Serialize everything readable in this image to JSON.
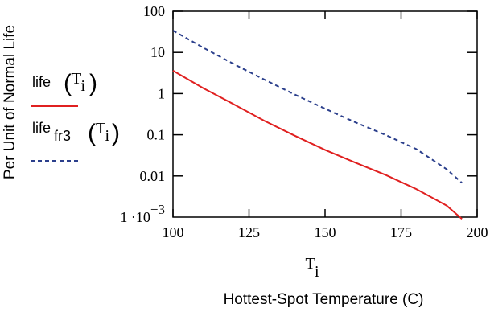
{
  "chart_data": {
    "type": "line",
    "ylabel": "Per Unit of Normal Life",
    "xlabel": "Hottest-Spot Temperature (C)",
    "x_var": {
      "base": "T",
      "sub": "i"
    },
    "x_ticks": [
      "100",
      "125",
      "150",
      "175",
      "200"
    ],
    "y_ticks": [
      "100",
      "10",
      "1",
      "0.1",
      "0.01"
    ],
    "y_tick_min": {
      "mantissa": "1 ·10",
      "exponent": "−3"
    },
    "xlim": [
      100,
      200
    ],
    "ylim": [
      0.001,
      100
    ],
    "y_scale": "log",
    "x": [
      100,
      110,
      120,
      130,
      140,
      150,
      160,
      170,
      180,
      190,
      195
    ],
    "series": [
      {
        "name_base": "life",
        "name_sub": "",
        "arg_base": "T",
        "arg_sub": "i",
        "color": "#e02020",
        "style": "solid",
        "values": [
          3.6,
          1.35,
          0.55,
          0.22,
          0.095,
          0.043,
          0.021,
          0.0105,
          0.0048,
          0.0019,
          0.0009
        ]
      },
      {
        "name_base": "life",
        "name_sub": "fr3",
        "arg_base": "T",
        "arg_sub": "i",
        "color": "#2b3f8c",
        "style": "dashed",
        "values": [
          34,
          13,
          5.2,
          2.2,
          0.95,
          0.43,
          0.2,
          0.098,
          0.045,
          0.0145,
          0.0068
        ]
      }
    ]
  }
}
